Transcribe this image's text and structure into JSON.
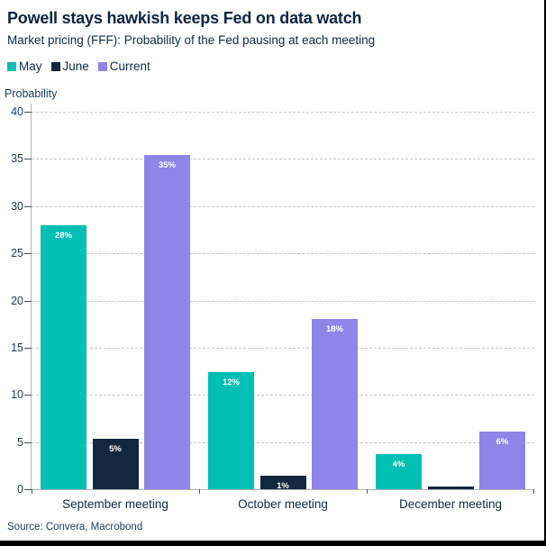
{
  "header": {
    "title": "Powell stays hawkish keeps Fed on data watch",
    "subtitle": "Market pricing (FFF): Probability of the Fed pausing at each meeting"
  },
  "source": {
    "text": "Source: Convera, Macrobond"
  },
  "colors": {
    "teal": "#00bfb3",
    "navy": "#13283f",
    "purple": "#8f85e8",
    "title_text": "#0b2545",
    "axis_text": "#1d3a5f",
    "gridline": "#c9c9c9",
    "axis_line": "#b3b3b3",
    "tick": "#4d4d4d",
    "bar_label": "#ffffff",
    "frame_border": "#000000"
  },
  "chart_data": {
    "type": "bar",
    "title": "Powell stays hawkish keeps Fed on data watch",
    "subtitle": "Market pricing (FFF): Probability of the Fed pausing at each meeting",
    "ylabel": "Probability",
    "xlabel": "",
    "ylim": [
      0,
      40
    ],
    "yticks": [
      0,
      5,
      10,
      15,
      20,
      25,
      30,
      35,
      40
    ],
    "grid": "horizontal-dashed",
    "legend_position": "top-left",
    "categories": [
      "September meeting",
      "October meeting",
      "December meeting"
    ],
    "series": [
      {
        "name": "May",
        "color": "#00bfb3",
        "values": [
          28.0,
          12.4,
          3.7
        ],
        "labels": [
          "28%",
          "12%",
          "4%"
        ]
      },
      {
        "name": "June",
        "color": "#13283f",
        "values": [
          5.3,
          1.4,
          0.3
        ],
        "labels": [
          "5%",
          "1%",
          ""
        ]
      },
      {
        "name": "Current",
        "color": "#8f85e8",
        "values": [
          35.4,
          18.0,
          6.1
        ],
        "labels": [
          "35%",
          "18%",
          "6%"
        ]
      }
    ]
  }
}
